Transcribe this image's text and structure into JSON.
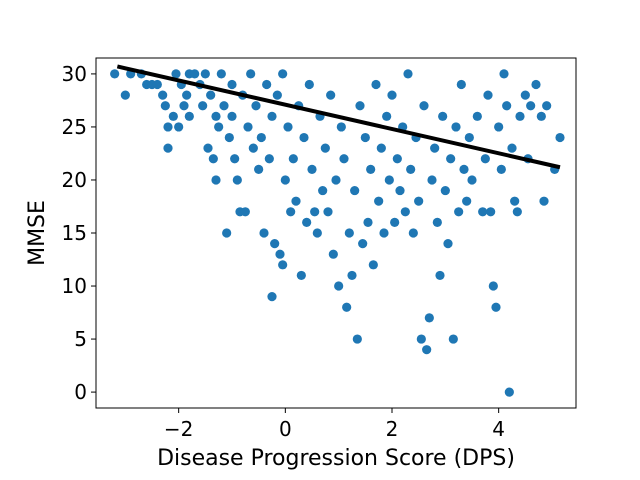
{
  "chart_data": {
    "type": "scatter",
    "title": "",
    "xlabel": "Disease Progression Score (DPS)",
    "ylabel": "MMSE",
    "xlim": [
      -3.55,
      5.45
    ],
    "ylim": [
      -1.5,
      31.5
    ],
    "x_ticks": [
      -2,
      0,
      2,
      4
    ],
    "x_tick_labels": [
      "−2",
      "0",
      "2",
      "4"
    ],
    "y_ticks": [
      0,
      5,
      10,
      15,
      20,
      25,
      30
    ],
    "y_tick_labels": [
      "0",
      "5",
      "10",
      "15",
      "20",
      "25",
      "30"
    ],
    "grid": false,
    "legend": "none",
    "colors": {
      "points": "#1f77b4",
      "fit_line": "#000000"
    },
    "fit_line": {
      "x": [
        -3.15,
        5.15
      ],
      "y": [
        30.7,
        21.2
      ]
    },
    "series": [
      {
        "points": [
          [
            -3.2,
            30
          ],
          [
            -3.0,
            28
          ],
          [
            -2.9,
            30
          ],
          [
            -2.7,
            30
          ],
          [
            -2.6,
            29
          ],
          [
            -2.5,
            29
          ],
          [
            -2.4,
            29
          ],
          [
            -2.3,
            28
          ],
          [
            -2.25,
            27
          ],
          [
            -2.2,
            25
          ],
          [
            -2.2,
            23
          ],
          [
            -2.1,
            26
          ],
          [
            -2.05,
            30
          ],
          [
            -2.0,
            25
          ],
          [
            -1.95,
            29
          ],
          [
            -1.9,
            27
          ],
          [
            -1.85,
            28
          ],
          [
            -1.8,
            30
          ],
          [
            -1.8,
            26
          ],
          [
            -1.7,
            30
          ],
          [
            -1.6,
            29
          ],
          [
            -1.55,
            27
          ],
          [
            -1.5,
            30
          ],
          [
            -1.45,
            23
          ],
          [
            -1.4,
            28
          ],
          [
            -1.35,
            22
          ],
          [
            -1.3,
            26
          ],
          [
            -1.3,
            20
          ],
          [
            -1.25,
            25
          ],
          [
            -1.2,
            30
          ],
          [
            -1.15,
            27
          ],
          [
            -1.1,
            15
          ],
          [
            -1.05,
            24
          ],
          [
            -1.0,
            29
          ],
          [
            -1.0,
            26
          ],
          [
            -0.95,
            22
          ],
          [
            -0.9,
            20
          ],
          [
            -0.85,
            17
          ],
          [
            -0.8,
            28
          ],
          [
            -0.75,
            17
          ],
          [
            -0.7,
            25
          ],
          [
            -0.65,
            30
          ],
          [
            -0.6,
            23
          ],
          [
            -0.55,
            27
          ],
          [
            -0.5,
            21
          ],
          [
            -0.45,
            24
          ],
          [
            -0.4,
            15
          ],
          [
            -0.35,
            29
          ],
          [
            -0.3,
            22
          ],
          [
            -0.25,
            26
          ],
          [
            -0.2,
            14
          ],
          [
            -0.15,
            28
          ],
          [
            -0.1,
            13
          ],
          [
            -0.05,
            30
          ],
          [
            -0.05,
            12
          ],
          [
            -0.25,
            9
          ],
          [
            0.0,
            20
          ],
          [
            0.05,
            25
          ],
          [
            0.1,
            17
          ],
          [
            0.15,
            22
          ],
          [
            0.2,
            18
          ],
          [
            0.25,
            27
          ],
          [
            0.3,
            11
          ],
          [
            0.35,
            24
          ],
          [
            0.4,
            16
          ],
          [
            0.45,
            29
          ],
          [
            0.5,
            21
          ],
          [
            0.55,
            17
          ],
          [
            0.6,
            15
          ],
          [
            0.65,
            26
          ],
          [
            0.7,
            19
          ],
          [
            0.75,
            23
          ],
          [
            0.8,
            17
          ],
          [
            0.85,
            28
          ],
          [
            0.9,
            13
          ],
          [
            0.95,
            20
          ],
          [
            1.0,
            10
          ],
          [
            1.05,
            25
          ],
          [
            1.1,
            22
          ],
          [
            1.15,
            8
          ],
          [
            1.2,
            15
          ],
          [
            1.25,
            11
          ],
          [
            1.3,
            19
          ],
          [
            1.35,
            5
          ],
          [
            1.4,
            27
          ],
          [
            1.45,
            14
          ],
          [
            1.5,
            24
          ],
          [
            1.55,
            16
          ],
          [
            1.6,
            21
          ],
          [
            1.65,
            12
          ],
          [
            1.7,
            29
          ],
          [
            1.75,
            18
          ],
          [
            1.8,
            23
          ],
          [
            1.85,
            15
          ],
          [
            1.9,
            26
          ],
          [
            1.95,
            20
          ],
          [
            2.0,
            28
          ],
          [
            2.05,
            16
          ],
          [
            2.1,
            22
          ],
          [
            2.15,
            19
          ],
          [
            2.2,
            25
          ],
          [
            2.25,
            17
          ],
          [
            2.3,
            30
          ],
          [
            2.35,
            21
          ],
          [
            2.4,
            15
          ],
          [
            2.45,
            24
          ],
          [
            2.5,
            18
          ],
          [
            2.55,
            5
          ],
          [
            2.6,
            27
          ],
          [
            2.65,
            4
          ],
          [
            2.7,
            7
          ],
          [
            2.75,
            20
          ],
          [
            2.8,
            23
          ],
          [
            2.85,
            16
          ],
          [
            2.9,
            11
          ],
          [
            2.95,
            26
          ],
          [
            3.0,
            19
          ],
          [
            3.05,
            14
          ],
          [
            3.1,
            22
          ],
          [
            3.15,
            5
          ],
          [
            3.2,
            25
          ],
          [
            3.25,
            17
          ],
          [
            3.3,
            29
          ],
          [
            3.35,
            21
          ],
          [
            3.4,
            18
          ],
          [
            3.45,
            24
          ],
          [
            3.5,
            20
          ],
          [
            3.6,
            26
          ],
          [
            3.7,
            17
          ],
          [
            3.75,
            22
          ],
          [
            3.8,
            28
          ],
          [
            3.85,
            17
          ],
          [
            3.9,
            10
          ],
          [
            3.95,
            8
          ],
          [
            4.0,
            25
          ],
          [
            4.05,
            21
          ],
          [
            4.1,
            30
          ],
          [
            4.15,
            27
          ],
          [
            4.2,
            0
          ],
          [
            4.25,
            23
          ],
          [
            4.3,
            18
          ],
          [
            4.35,
            17
          ],
          [
            4.4,
            26
          ],
          [
            4.5,
            28
          ],
          [
            4.55,
            22
          ],
          [
            4.6,
            27
          ],
          [
            4.7,
            29
          ],
          [
            4.8,
            26
          ],
          [
            4.85,
            18
          ],
          [
            4.9,
            27
          ],
          [
            5.05,
            21
          ],
          [
            5.15,
            24
          ]
        ]
      }
    ]
  }
}
